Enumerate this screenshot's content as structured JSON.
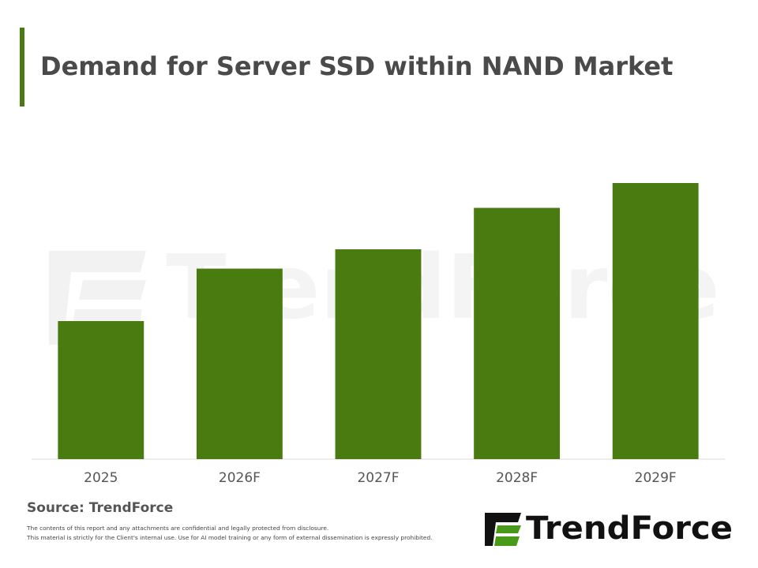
{
  "chart_data": {
    "type": "bar",
    "title": "Demand for Server SSD within NAND Market",
    "categories": [
      "2025",
      "2026F",
      "2027F",
      "2028F",
      "2029F"
    ],
    "values": [
      50,
      69,
      76,
      91,
      100
    ],
    "color": "#4a7b10",
    "ylim": [
      0,
      100
    ]
  },
  "watermark": "TrendForce",
  "source": "Source: TrendForce",
  "disclaimer": [
    "The contents of this report and any attachments are confidential and legally protected from disclosure.",
    "This material is strictly for the Client's internal use. Use for AI model training or any form of external dissemination is expressly prohibited."
  ],
  "logo_text": "TrendForce"
}
